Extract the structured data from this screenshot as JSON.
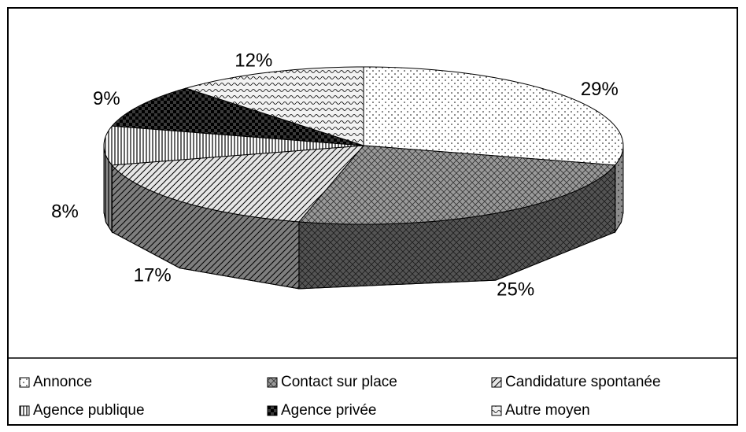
{
  "chart_data": {
    "type": "pie",
    "categories": [
      "Annonce",
      "Contact sur place",
      "Candidature spontanée",
      "Agence publique",
      "Agence privée",
      "Autre moyen"
    ],
    "values": [
      29,
      25,
      17,
      8,
      9,
      12
    ],
    "value_labels": [
      "29%",
      "25%",
      "17%",
      "8%",
      "9%",
      "12%"
    ],
    "colors": [
      "#ffffff",
      "#9a9a9a",
      "#e6e6e6",
      "#ffffff",
      "#3a3a3a",
      "#f2f2f2"
    ],
    "legend": "bottom"
  }
}
